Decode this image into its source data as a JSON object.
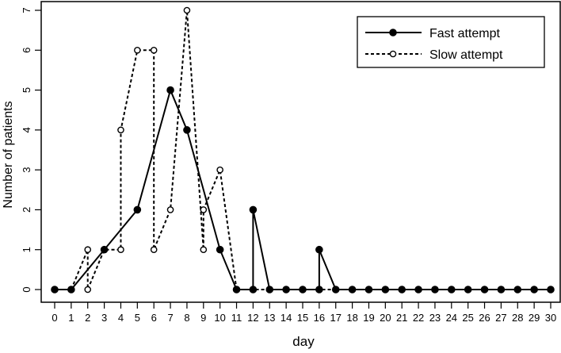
{
  "chart_data": {
    "type": "line",
    "xlabel": "day",
    "ylabel": "Number of patients",
    "xlim": [
      0,
      30
    ],
    "ylim": [
      0,
      7
    ],
    "x_ticks": [
      0,
      1,
      2,
      3,
      4,
      5,
      6,
      7,
      8,
      9,
      10,
      11,
      12,
      13,
      14,
      15,
      16,
      17,
      18,
      19,
      20,
      21,
      22,
      23,
      24,
      25,
      26,
      27,
      28,
      29,
      30
    ],
    "y_ticks": [
      0,
      1,
      2,
      3,
      4,
      5,
      6,
      7
    ],
    "grid": false,
    "legend_position": "top-right",
    "series": [
      {
        "name": "Fast attempt",
        "style": "solid",
        "marker": "filled-circle",
        "color": "#000000",
        "points": [
          [
            0,
            0
          ],
          [
            1,
            0
          ],
          [
            3,
            1
          ],
          [
            5,
            2
          ],
          [
            7,
            5
          ],
          [
            8,
            4
          ],
          [
            10,
            1
          ],
          [
            11,
            0
          ],
          [
            12,
            0
          ],
          [
            12,
            2
          ],
          [
            13,
            0
          ],
          [
            14,
            0
          ],
          [
            15,
            0
          ],
          [
            16,
            0
          ],
          [
            16,
            1
          ],
          [
            17,
            0
          ],
          [
            18,
            0
          ],
          [
            19,
            0
          ],
          [
            20,
            0
          ],
          [
            21,
            0
          ],
          [
            22,
            0
          ],
          [
            23,
            0
          ],
          [
            24,
            0
          ],
          [
            25,
            0
          ],
          [
            26,
            0
          ],
          [
            27,
            0
          ],
          [
            28,
            0
          ],
          [
            29,
            0
          ],
          [
            30,
            0
          ]
        ]
      },
      {
        "name": "Slow attempt",
        "style": "dashed",
        "marker": "open-circle",
        "color": "#000000",
        "points": [
          [
            0,
            0
          ],
          [
            1,
            0
          ],
          [
            2,
            1
          ],
          [
            2,
            0
          ],
          [
            3,
            1
          ],
          [
            4,
            1
          ],
          [
            4,
            4
          ],
          [
            5,
            6
          ],
          [
            6,
            6
          ],
          [
            6,
            1
          ],
          [
            7,
            2
          ],
          [
            8,
            7
          ],
          [
            9,
            1
          ],
          [
            9,
            2
          ],
          [
            10,
            3
          ],
          [
            11,
            0
          ],
          [
            12,
            0
          ],
          [
            13,
            0
          ],
          [
            14,
            0
          ],
          [
            15,
            0
          ],
          [
            16,
            0
          ],
          [
            17,
            0
          ],
          [
            18,
            0
          ],
          [
            19,
            0
          ],
          [
            20,
            0
          ],
          [
            21,
            0
          ],
          [
            22,
            0
          ],
          [
            23,
            0
          ],
          [
            24,
            0
          ],
          [
            25,
            0
          ],
          [
            26,
            0
          ],
          [
            27,
            0
          ],
          [
            28,
            0
          ],
          [
            29,
            0
          ],
          [
            30,
            0
          ]
        ]
      }
    ]
  }
}
